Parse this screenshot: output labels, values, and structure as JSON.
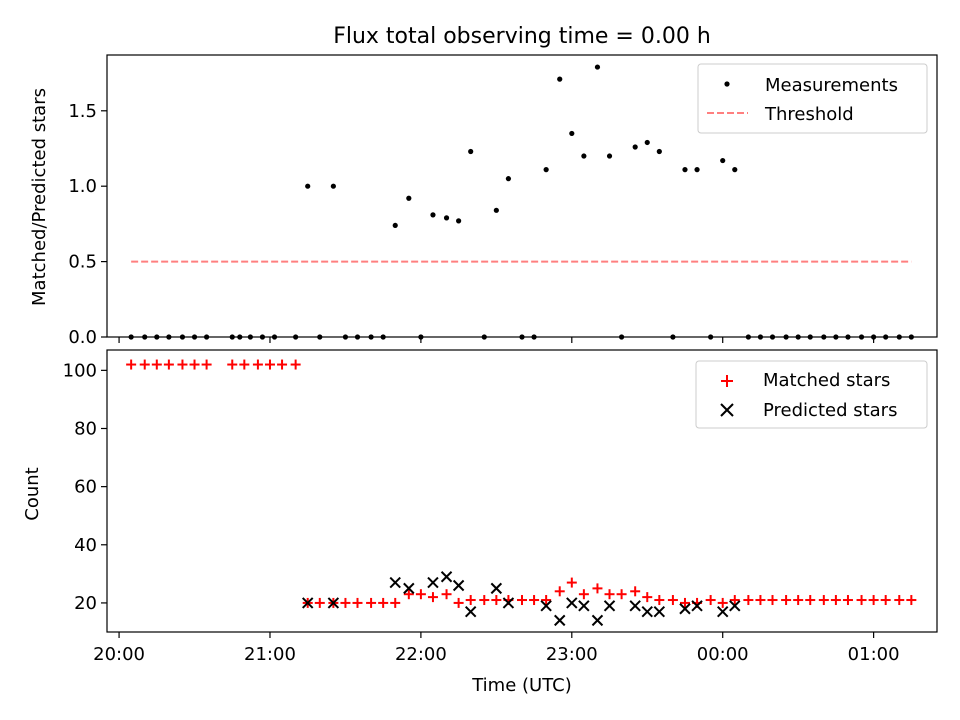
{
  "title": "Flux total observing time = 0.00 h",
  "chart_data": [
    {
      "type": "scatter",
      "panel": "top",
      "ylabel": "Matched/Predicted stars",
      "ylim": [
        0,
        1.87
      ],
      "yticks": [
        0.0,
        0.5,
        1.0,
        1.5
      ],
      "ytick_labels": [
        "0.0",
        "0.5",
        "1.0",
        "1.5"
      ],
      "xlim": [
        -2.5,
        61.5
      ],
      "x_unit": "hours since 20:00 UTC",
      "grid": false,
      "legend_position": "top-right",
      "legend": {
        "measurements": "Measurements",
        "threshold": "Threshold"
      },
      "threshold": {
        "x_start": 0.08,
        "x_end": 5.25,
        "y": 0.5,
        "color": "#ff7f7f"
      },
      "measurements_color": "#000000",
      "measurements": [
        {
          "x": 0.08,
          "y": 0.0
        },
        {
          "x": 0.17,
          "y": 0.0
        },
        {
          "x": 0.25,
          "y": 0.0
        },
        {
          "x": 0.33,
          "y": 0.0
        },
        {
          "x": 0.42,
          "y": 0.0
        },
        {
          "x": 0.5,
          "y": 0.0
        },
        {
          "x": 0.58,
          "y": 0.0
        },
        {
          "x": 0.75,
          "y": 0.0
        },
        {
          "x": 0.8,
          "y": 0.0
        },
        {
          "x": 0.87,
          "y": 0.0
        },
        {
          "x": 0.95,
          "y": 0.0
        },
        {
          "x": 1.03,
          "y": 0.0
        },
        {
          "x": 1.17,
          "y": 0.0
        },
        {
          "x": 1.25,
          "y": 1.0
        },
        {
          "x": 1.33,
          "y": 0.0
        },
        {
          "x": 1.42,
          "y": 1.0
        },
        {
          "x": 1.5,
          "y": 0.0
        },
        {
          "x": 1.58,
          "y": 0.0
        },
        {
          "x": 1.67,
          "y": 0.0
        },
        {
          "x": 1.75,
          "y": 0.0
        },
        {
          "x": 1.83,
          "y": 0.74
        },
        {
          "x": 1.92,
          "y": 0.92
        },
        {
          "x": 2.0,
          "y": 0.0
        },
        {
          "x": 2.08,
          "y": 0.81
        },
        {
          "x": 2.17,
          "y": 0.79
        },
        {
          "x": 2.25,
          "y": 0.77
        },
        {
          "x": 2.33,
          "y": 1.23
        },
        {
          "x": 2.42,
          "y": 0.0
        },
        {
          "x": 2.5,
          "y": 0.84
        },
        {
          "x": 2.58,
          "y": 1.05
        },
        {
          "x": 2.67,
          "y": 0.0
        },
        {
          "x": 2.75,
          "y": 0.0
        },
        {
          "x": 2.83,
          "y": 1.11
        },
        {
          "x": 2.92,
          "y": 1.71
        },
        {
          "x": 3.0,
          "y": 1.35
        },
        {
          "x": 3.08,
          "y": 1.2
        },
        {
          "x": 3.17,
          "y": 1.79
        },
        {
          "x": 3.25,
          "y": 1.2
        },
        {
          "x": 3.33,
          "y": 0.0
        },
        {
          "x": 3.42,
          "y": 1.26
        },
        {
          "x": 3.5,
          "y": 1.29
        },
        {
          "x": 3.58,
          "y": 1.23
        },
        {
          "x": 3.67,
          "y": 0.0
        },
        {
          "x": 3.75,
          "y": 1.11
        },
        {
          "x": 3.83,
          "y": 1.11
        },
        {
          "x": 3.92,
          "y": 0.0
        },
        {
          "x": 4.0,
          "y": 1.17
        },
        {
          "x": 4.08,
          "y": 1.11
        },
        {
          "x": 4.17,
          "y": 0.0
        },
        {
          "x": 4.25,
          "y": 0.0
        },
        {
          "x": 4.33,
          "y": 0.0
        },
        {
          "x": 4.42,
          "y": 0.0
        },
        {
          "x": 4.5,
          "y": 0.0
        },
        {
          "x": 4.58,
          "y": 0.0
        },
        {
          "x": 4.67,
          "y": 0.0
        },
        {
          "x": 4.75,
          "y": 0.0
        },
        {
          "x": 4.83,
          "y": 0.0
        },
        {
          "x": 4.92,
          "y": 0.0
        },
        {
          "x": 5.0,
          "y": 0.0
        },
        {
          "x": 5.08,
          "y": 0.0
        },
        {
          "x": 5.17,
          "y": 0.0
        },
        {
          "x": 5.25,
          "y": 0.0
        }
      ]
    },
    {
      "type": "scatter",
      "panel": "bottom",
      "ylabel": "Count",
      "xlabel": "Time (UTC)",
      "ylim": [
        10,
        107
      ],
      "yticks": [
        20,
        40,
        60,
        80,
        100
      ],
      "ytick_labels": [
        "20",
        "40",
        "60",
        "80",
        "100"
      ],
      "xlim": [
        -0.08,
        5.42
      ],
      "xticks": [
        0,
        1,
        2,
        3,
        4,
        5
      ],
      "xtick_labels": [
        "20:00",
        "21:00",
        "22:00",
        "23:00",
        "00:00",
        "01:00"
      ],
      "grid": false,
      "legend_position": "top-right",
      "series": [
        {
          "name": "Matched stars",
          "marker": "plus",
          "color": "#ff0000",
          "points": [
            {
              "x": 0.08,
              "y": 102
            },
            {
              "x": 0.17,
              "y": 102
            },
            {
              "x": 0.25,
              "y": 102
            },
            {
              "x": 0.33,
              "y": 102
            },
            {
              "x": 0.42,
              "y": 102
            },
            {
              "x": 0.5,
              "y": 102
            },
            {
              "x": 0.58,
              "y": 102
            },
            {
              "x": 0.75,
              "y": 102
            },
            {
              "x": 0.83,
              "y": 102
            },
            {
              "x": 0.92,
              "y": 102
            },
            {
              "x": 1.0,
              "y": 102
            },
            {
              "x": 1.08,
              "y": 102
            },
            {
              "x": 1.17,
              "y": 102
            },
            {
              "x": 1.25,
              "y": 20
            },
            {
              "x": 1.33,
              "y": 20
            },
            {
              "x": 1.42,
              "y": 20
            },
            {
              "x": 1.5,
              "y": 20
            },
            {
              "x": 1.58,
              "y": 20
            },
            {
              "x": 1.67,
              "y": 20
            },
            {
              "x": 1.75,
              "y": 20
            },
            {
              "x": 1.83,
              "y": 20
            },
            {
              "x": 1.92,
              "y": 23
            },
            {
              "x": 2.0,
              "y": 23
            },
            {
              "x": 2.08,
              "y": 22
            },
            {
              "x": 2.17,
              "y": 23
            },
            {
              "x": 2.25,
              "y": 20
            },
            {
              "x": 2.33,
              "y": 21
            },
            {
              "x": 2.42,
              "y": 21
            },
            {
              "x": 2.5,
              "y": 21
            },
            {
              "x": 2.58,
              "y": 21
            },
            {
              "x": 2.67,
              "y": 21
            },
            {
              "x": 2.75,
              "y": 21
            },
            {
              "x": 2.83,
              "y": 21
            },
            {
              "x": 2.92,
              "y": 24
            },
            {
              "x": 3.0,
              "y": 27
            },
            {
              "x": 3.08,
              "y": 23
            },
            {
              "x": 3.17,
              "y": 25
            },
            {
              "x": 3.25,
              "y": 23
            },
            {
              "x": 3.33,
              "y": 23
            },
            {
              "x": 3.42,
              "y": 24
            },
            {
              "x": 3.5,
              "y": 22
            },
            {
              "x": 3.58,
              "y": 21
            },
            {
              "x": 3.67,
              "y": 21
            },
            {
              "x": 3.75,
              "y": 20
            },
            {
              "x": 3.83,
              "y": 20
            },
            {
              "x": 3.92,
              "y": 21
            },
            {
              "x": 4.0,
              "y": 20
            },
            {
              "x": 4.08,
              "y": 21
            },
            {
              "x": 4.17,
              "y": 21
            },
            {
              "x": 4.25,
              "y": 21
            },
            {
              "x": 4.33,
              "y": 21
            },
            {
              "x": 4.42,
              "y": 21
            },
            {
              "x": 4.5,
              "y": 21
            },
            {
              "x": 4.58,
              "y": 21
            },
            {
              "x": 4.67,
              "y": 21
            },
            {
              "x": 4.75,
              "y": 21
            },
            {
              "x": 4.83,
              "y": 21
            },
            {
              "x": 4.92,
              "y": 21
            },
            {
              "x": 5.0,
              "y": 21
            },
            {
              "x": 5.08,
              "y": 21
            },
            {
              "x": 5.17,
              "y": 21
            },
            {
              "x": 5.25,
              "y": 21
            }
          ]
        },
        {
          "name": "Predicted stars",
          "marker": "x",
          "color": "#000000",
          "points": [
            {
              "x": 1.25,
              "y": 20
            },
            {
              "x": 1.42,
              "y": 20
            },
            {
              "x": 1.83,
              "y": 27
            },
            {
              "x": 1.92,
              "y": 25
            },
            {
              "x": 2.08,
              "y": 27
            },
            {
              "x": 2.17,
              "y": 29
            },
            {
              "x": 2.25,
              "y": 26
            },
            {
              "x": 2.33,
              "y": 17
            },
            {
              "x": 2.5,
              "y": 25
            },
            {
              "x": 2.58,
              "y": 20
            },
            {
              "x": 2.83,
              "y": 19
            },
            {
              "x": 2.92,
              "y": 14
            },
            {
              "x": 3.0,
              "y": 20
            },
            {
              "x": 3.08,
              "y": 19
            },
            {
              "x": 3.17,
              "y": 14
            },
            {
              "x": 3.25,
              "y": 19
            },
            {
              "x": 3.42,
              "y": 19
            },
            {
              "x": 3.5,
              "y": 17
            },
            {
              "x": 3.58,
              "y": 17
            },
            {
              "x": 3.75,
              "y": 18
            },
            {
              "x": 3.83,
              "y": 19
            },
            {
              "x": 4.0,
              "y": 17
            },
            {
              "x": 4.08,
              "y": 19
            }
          ]
        }
      ]
    }
  ]
}
